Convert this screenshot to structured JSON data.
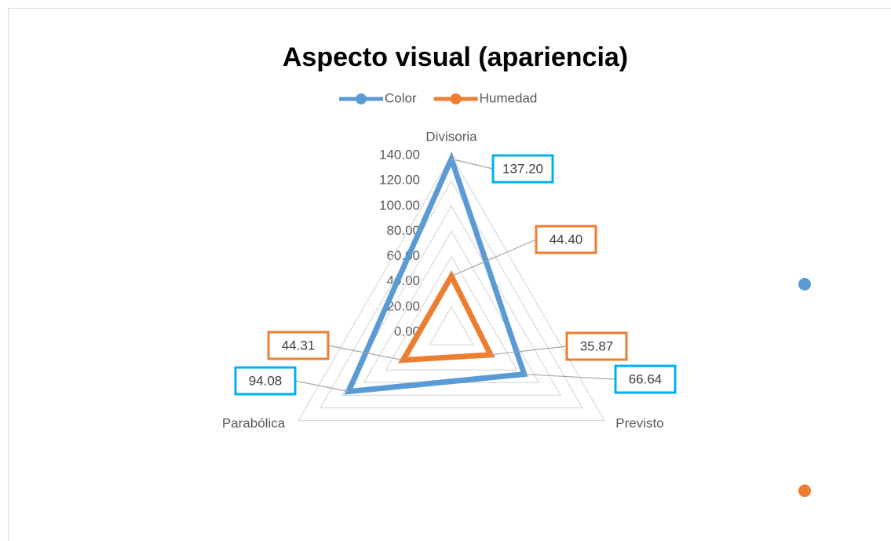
{
  "chart_data": {
    "type": "radar",
    "title": "Aspecto visual (apariencia)",
    "categories": [
      "Divisoria",
      "Previsto",
      "Parabólica"
    ],
    "series": [
      {
        "name": "Color",
        "color": "#5b9bd5",
        "label_border": "#00b0f0",
        "values": [
          137.2,
          66.64,
          94.08
        ],
        "value_labels": [
          "137.20",
          "66.64",
          "94.08"
        ]
      },
      {
        "name": "Humedad",
        "color": "#ed7d31",
        "label_border": "#ed7d31",
        "values": [
          44.4,
          35.87,
          44.31
        ],
        "value_labels": [
          "44.40",
          "35.87",
          "44.31"
        ]
      }
    ],
    "ylim": [
      0,
      140
    ],
    "yticks": [
      {
        "value": 0,
        "label": "0.00"
      },
      {
        "value": 20,
        "label": "20.00"
      },
      {
        "value": 40,
        "label": "40.00"
      },
      {
        "value": 60,
        "label": "60.00"
      },
      {
        "value": 80,
        "label": "80.00"
      },
      {
        "value": 100,
        "label": "100.00"
      },
      {
        "value": 120,
        "label": "120.00"
      },
      {
        "value": 140,
        "label": "140.00"
      }
    ],
    "grid": true,
    "legend": "top"
  }
}
